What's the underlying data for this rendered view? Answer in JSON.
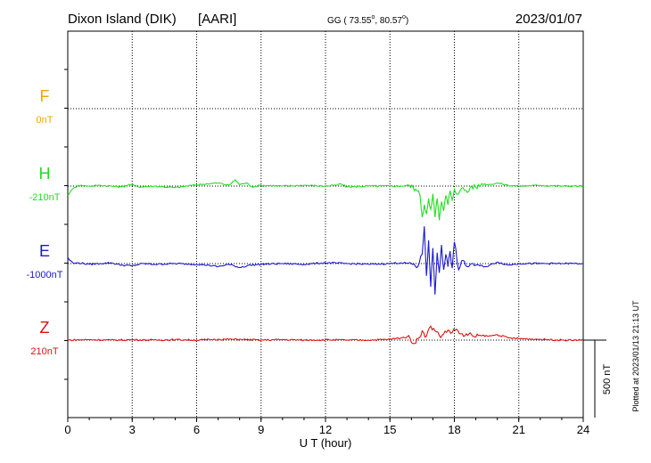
{
  "header": {
    "station": "Dixon Island (DIK)",
    "institute": "[AARI]",
    "coords_prefix": "GG ( 73.55",
    "coords_mid": ",  80.57",
    "coords_suffix": ")",
    "degree_sign": "o",
    "date": "2023/01/07"
  },
  "side_note": "Plotted at 2023/01/13 21:13 UT",
  "scale_bar_label": "500 nT",
  "colors": {
    "F": "#f0a800",
    "H": "#22dd22",
    "E": "#1a1acc",
    "Z": "#dd1111",
    "grid": "#000000"
  },
  "chart_data": {
    "type": "line",
    "xlabel": "U T (hour)",
    "xlim": [
      0,
      24
    ],
    "xticks": [
      "0",
      "3",
      "6",
      "9",
      "12",
      "15",
      "18",
      "21",
      "24"
    ],
    "scale_nT": 500,
    "series": [
      {
        "name": "F",
        "baseline_label": "0nT",
        "x": [],
        "y": []
      },
      {
        "name": "H",
        "baseline_label": "-210nT",
        "x": [
          0,
          0.1,
          0.3,
          0.5,
          1,
          1.5,
          2,
          2.5,
          2.9,
          3.3,
          4,
          5,
          5.8,
          6.5,
          7,
          7.5,
          7.8,
          8,
          8.3,
          8.6,
          9,
          10,
          11,
          12,
          12.5,
          12.7,
          13,
          14,
          15,
          15.5,
          15.9,
          16.2,
          16.4,
          16.5,
          16.6,
          16.7,
          16.8,
          16.9,
          17.0,
          17.1,
          17.2,
          17.3,
          17.4,
          17.5,
          17.6,
          17.7,
          17.8,
          17.9,
          18.0,
          18.2,
          18.4,
          18.6,
          18.8,
          19,
          19.3,
          19.6,
          20,
          20.5,
          21,
          22,
          23,
          24
        ],
        "y": [
          -60,
          -40,
          -10,
          5,
          0,
          5,
          0,
          -5,
          10,
          -5,
          0,
          -10,
          5,
          15,
          20,
          5,
          40,
          10,
          20,
          -5,
          5,
          0,
          5,
          0,
          5,
          15,
          -5,
          0,
          0,
          0,
          5,
          -20,
          -60,
          -200,
          -120,
          -180,
          -80,
          -150,
          -50,
          -200,
          -80,
          -220,
          -100,
          -160,
          -60,
          -120,
          -30,
          -90,
          -20,
          -50,
          -10,
          -40,
          0,
          -10,
          15,
          10,
          20,
          5,
          0,
          5,
          0,
          0
        ]
      },
      {
        "name": "E",
        "baseline_label": "-1000nT",
        "x": [
          0,
          0.1,
          0.3,
          0.5,
          1,
          1.5,
          2,
          2.5,
          3,
          3.5,
          4,
          5,
          6,
          6.5,
          7,
          7.5,
          8,
          8.5,
          9,
          10,
          11,
          12,
          13,
          14,
          15,
          15.5,
          16,
          16.3,
          16.5,
          16.6,
          16.7,
          16.8,
          16.9,
          17.0,
          17.1,
          17.2,
          17.3,
          17.4,
          17.5,
          17.6,
          17.7,
          17.8,
          17.9,
          18.0,
          18.2,
          18.4,
          18.6,
          18.8,
          19,
          19.5,
          20,
          20.5,
          21,
          22,
          23,
          24
        ],
        "y": [
          40,
          20,
          0,
          5,
          -5,
          0,
          5,
          -10,
          -15,
          0,
          -5,
          0,
          -5,
          -10,
          -20,
          -5,
          -25,
          -10,
          -5,
          0,
          -5,
          5,
          0,
          -5,
          0,
          5,
          0,
          -20,
          60,
          240,
          -80,
          150,
          -150,
          100,
          -200,
          70,
          -60,
          120,
          -40,
          60,
          -20,
          80,
          -30,
          140,
          -40,
          20,
          -20,
          0,
          -10,
          -20,
          10,
          -10,
          0,
          0,
          0,
          0
        ]
      },
      {
        "name": "Z",
        "baseline_label": "210nT",
        "x": [
          0,
          1,
          2,
          3,
          4,
          5,
          6,
          7,
          8,
          9,
          10,
          11,
          12,
          13,
          14,
          15,
          15.8,
          16.2,
          16.5,
          16.7,
          16.9,
          17.1,
          17.3,
          17.5,
          17.7,
          17.9,
          18.1,
          18.3,
          18.5,
          18.8,
          19,
          19.3,
          19.6,
          20,
          20.5,
          21,
          22,
          23,
          24
        ],
        "y": [
          0,
          3,
          0,
          2,
          0,
          3,
          0,
          5,
          5,
          0,
          3,
          0,
          2,
          0,
          0,
          5,
          20,
          -20,
          60,
          25,
          90,
          60,
          30,
          40,
          65,
          50,
          70,
          40,
          30,
          35,
          20,
          30,
          25,
          35,
          15,
          10,
          5,
          0,
          0
        ]
      }
    ]
  }
}
